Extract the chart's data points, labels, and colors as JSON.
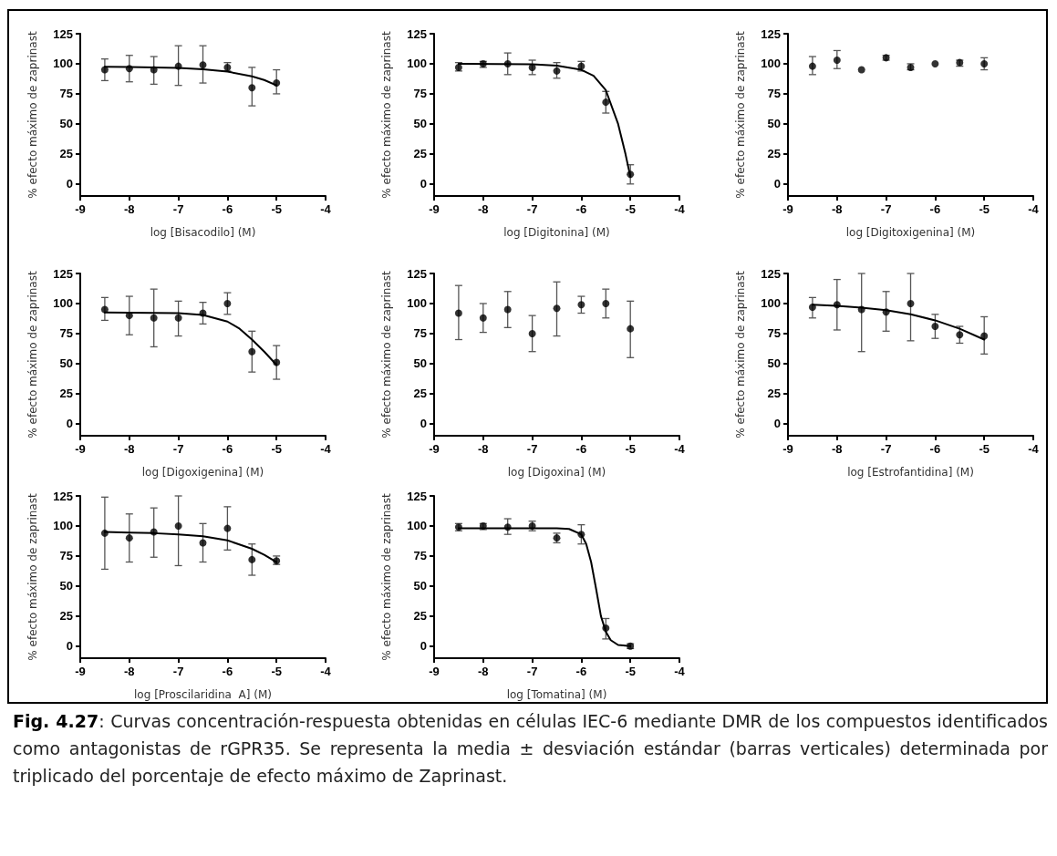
{
  "chart_data": [
    {
      "type": "scatter",
      "xlabel": "log [Bisacodilo] (M)",
      "ylabel": "% efecto máximo de zaprinast",
      "xlim": [
        -9,
        -4
      ],
      "xticks": [
        -9,
        -8,
        -7,
        -6,
        -5,
        -4
      ],
      "ylim": [
        -10,
        125
      ],
      "yticks": [
        0,
        25,
        50,
        75,
        100,
        125
      ],
      "marker": "circle",
      "x": [
        -8.5,
        -8,
        -7.5,
        -7,
        -6.5,
        -6,
        -5.5,
        -5
      ],
      "series": [
        {
          "color": "#000000",
          "values": [
            95,
            96,
            95,
            98,
            99,
            97,
            80,
            84
          ],
          "errors": [
            [
              86,
              104
            ],
            [
              85,
              107
            ],
            [
              83,
              106
            ],
            [
              82,
              115
            ],
            [
              84,
              115
            ],
            [
              94,
              101
            ],
            [
              65,
              97
            ],
            [
              75,
              95
            ]
          ]
        },
        {
          "type": "line",
          "color": "#000000",
          "marker": "none",
          "x": [
            -8.5,
            -8,
            -7.5,
            -7,
            -6.5,
            -6,
            -5.5,
            -5.25,
            -5
          ],
          "values": [
            97.5,
            97.3,
            97,
            96.5,
            95.5,
            93.5,
            89.5,
            86.5,
            82
          ]
        }
      ]
    },
    {
      "type": "scatter",
      "xlabel": "log [Digitonina] (M)",
      "ylabel": "% efecto máximo de zaprinast",
      "xlim": [
        -9,
        -4
      ],
      "xticks": [
        -9,
        -8,
        -7,
        -6,
        -5,
        -4
      ],
      "ylim": [
        -10,
        125
      ],
      "yticks": [
        0,
        25,
        50,
        75,
        100,
        125
      ],
      "marker": "circle",
      "x": [
        -8.5,
        -8,
        -7.5,
        -7,
        -6.5,
        -6,
        -5.5,
        -5
      ],
      "series": [
        {
          "color": "#000000",
          "values": [
            97,
            100,
            100,
            97,
            94,
            98,
            68,
            8
          ],
          "errors": [
            [
              94,
              101
            ],
            [
              97,
              102
            ],
            [
              91,
              109
            ],
            [
              91,
              103
            ],
            [
              88,
              101
            ],
            [
              94,
              102
            ],
            [
              59,
              77
            ],
            [
              0,
              16
            ]
          ]
        },
        {
          "type": "line",
          "color": "#000000",
          "marker": "none",
          "x": [
            -8.5,
            -7,
            -6.5,
            -6,
            -5.75,
            -5.5,
            -5.25,
            -5.1,
            -5
          ],
          "values": [
            100,
            99.5,
            98.5,
            95,
            90,
            78,
            50,
            25,
            6
          ]
        }
      ]
    },
    {
      "type": "scatter",
      "xlabel": "log [Digitoxigenina] (M)",
      "ylabel": "% efecto máximo de zaprinast",
      "xlim": [
        -9,
        -4
      ],
      "xticks": [
        -9,
        -8,
        -7,
        -6,
        -5,
        -4
      ],
      "ylim": [
        -10,
        125
      ],
      "yticks": [
        0,
        25,
        50,
        75,
        100,
        125
      ],
      "marker": "circle",
      "x": [
        -8.5,
        -8,
        -7.5,
        -7,
        -6.5,
        -6,
        -5.5,
        -5
      ],
      "series": [
        {
          "color": "#000000",
          "values": [
            98,
            103,
            95,
            105,
            97,
            100,
            101,
            100
          ],
          "errors": [
            [
              91,
              106
            ],
            [
              96,
              111
            ],
            null,
            [
              103,
              107
            ],
            [
              95,
              100
            ],
            null,
            [
              98,
              103
            ],
            [
              95,
              105
            ]
          ]
        }
      ]
    },
    {
      "type": "scatter",
      "xlabel": "log [Digoxigenina] (M)",
      "ylabel": "% efecto máximo de zaprinast",
      "xlim": [
        -9,
        -4
      ],
      "xticks": [
        -9,
        -8,
        -7,
        -6,
        -5,
        -4
      ],
      "ylim": [
        -10,
        125
      ],
      "yticks": [
        0,
        25,
        50,
        75,
        100,
        125
      ],
      "marker": "circle",
      "x": [
        -8.5,
        -8,
        -7.5,
        -7,
        -6.5,
        -6,
        -5.5,
        -5
      ],
      "series": [
        {
          "color": "#000000",
          "values": [
            95,
            90,
            88,
            88,
            92,
            100,
            60,
            51
          ],
          "errors": [
            [
              86,
              105
            ],
            [
              74,
              106
            ],
            [
              64,
              112
            ],
            [
              73,
              102
            ],
            [
              83,
              101
            ],
            [
              91,
              109
            ],
            [
              43,
              77
            ],
            [
              37,
              65
            ]
          ]
        },
        {
          "type": "line",
          "color": "#000000",
          "marker": "none",
          "x": [
            -8.5,
            -7,
            -6.5,
            -6,
            -5.75,
            -5.5,
            -5.25,
            -5
          ],
          "values": [
            92.5,
            92,
            90.5,
            85,
            79,
            70,
            60,
            49
          ]
        }
      ]
    },
    {
      "type": "scatter",
      "xlabel": "log [Digoxina] (M)",
      "ylabel": "% efecto máximo de zaprinast",
      "xlim": [
        -9,
        -4
      ],
      "xticks": [
        -9,
        -8,
        -7,
        -6,
        -5,
        -4
      ],
      "ylim": [
        -10,
        125
      ],
      "yticks": [
        0,
        25,
        50,
        75,
        100,
        125
      ],
      "marker": "circle",
      "x": [
        -8.5,
        -8,
        -7.5,
        -7,
        -6.5,
        -6,
        -5.5,
        -5
      ],
      "series": [
        {
          "color": "#000000",
          "values": [
            92,
            88,
            95,
            75,
            96,
            99,
            100,
            79
          ],
          "errors": [
            [
              70,
              115
            ],
            [
              76,
              100
            ],
            [
              80,
              110
            ],
            [
              60,
              90
            ],
            [
              73,
              118
            ],
            [
              92,
              106
            ],
            [
              88,
              112
            ],
            [
              55,
              102
            ]
          ]
        }
      ]
    },
    {
      "type": "scatter",
      "xlabel": "log [Estrofantidina] (M)",
      "ylabel": "% efecto máximo de zaprinast",
      "xlim": [
        -9,
        -4
      ],
      "xticks": [
        -9,
        -8,
        -7,
        -6,
        -5,
        -4
      ],
      "ylim": [
        -10,
        125
      ],
      "yticks": [
        0,
        25,
        50,
        75,
        100,
        125
      ],
      "marker": "circle",
      "x": [
        -8.5,
        -8,
        -7.5,
        -7,
        -6.5,
        -6,
        -5.5,
        -5
      ],
      "series": [
        {
          "color": "#000000",
          "values": [
            97,
            99,
            95,
            93,
            100,
            81,
            74,
            73
          ],
          "errors": [
            [
              88,
              105
            ],
            [
              78,
              120
            ],
            [
              60,
              125
            ],
            [
              77,
              110
            ],
            [
              69,
              125
            ],
            [
              71,
              91
            ],
            [
              67,
              81
            ],
            [
              58,
              89
            ]
          ]
        },
        {
          "type": "line",
          "color": "#000000",
          "marker": "none",
          "x": [
            -8.5,
            -8,
            -7.5,
            -7,
            -6.5,
            -6,
            -5.5,
            -5
          ],
          "values": [
            99,
            98,
            96.5,
            94.5,
            91,
            86,
            79,
            70
          ]
        }
      ]
    },
    {
      "type": "scatter",
      "xlabel": "log [Proscilaridina  A] (M)",
      "ylabel": "% efecto máximo de zaprinast",
      "xlim": [
        -9,
        -4
      ],
      "xticks": [
        -9,
        -8,
        -7,
        -6,
        -5,
        -4
      ],
      "ylim": [
        -10,
        125
      ],
      "yticks": [
        0,
        25,
        50,
        75,
        100,
        125
      ],
      "marker": "circle",
      "x": [
        -8.5,
        -8,
        -7.5,
        -7,
        -6.5,
        -6,
        -5.5,
        -5
      ],
      "series": [
        {
          "color": "#000000",
          "values": [
            94,
            90,
            95,
            100,
            86,
            98,
            72,
            71
          ],
          "errors": [
            [
              64,
              124
            ],
            [
              70,
              110
            ],
            [
              74,
              115
            ],
            [
              67,
              125
            ],
            [
              70,
              102
            ],
            [
              80,
              116
            ],
            [
              59,
              85
            ],
            [
              68,
              75
            ]
          ]
        },
        {
          "type": "line",
          "color": "#000000",
          "marker": "none",
          "x": [
            -8.5,
            -8,
            -7.5,
            -7,
            -6.5,
            -6,
            -5.5,
            -5.25,
            -5
          ],
          "values": [
            95,
            94.5,
            94,
            93,
            91.5,
            88,
            81,
            76,
            70
          ]
        }
      ]
    },
    {
      "type": "scatter",
      "xlabel": "log [Tomatina] (M)",
      "ylabel": "% efecto máximo de zaprinast",
      "xlim": [
        -9,
        -4
      ],
      "xticks": [
        -9,
        -8,
        -7,
        -6,
        -5,
        -4
      ],
      "ylim": [
        -10,
        125
      ],
      "yticks": [
        0,
        25,
        50,
        75,
        100,
        125
      ],
      "marker": "circle",
      "x": [
        -8.5,
        -8,
        -7.5,
        -7,
        -6.5,
        -6,
        -5.5,
        -5
      ],
      "annotations": [
        "Fig. 4.27: Curvas concentración-respuesta obtenidas en células IEC-6 mediante DMR de los compuestos identificados como antagonistas de rGPR35. Se representa la media ± desviación estándar (barras verticales) determinada por triplicado del porcentaje de efecto máximo de Zaprinast."
      ],
      "series": [
        {
          "color": "#000000",
          "values": [
            99,
            100,
            99,
            100,
            90,
            93,
            15,
            0
          ],
          "errors": [
            [
              96,
              102
            ],
            [
              97,
              102
            ],
            [
              93,
              106
            ],
            [
              96,
              104
            ],
            [
              86,
              94
            ],
            [
              85,
              101
            ],
            [
              6,
              23
            ],
            [
              -2,
              2
            ]
          ]
        },
        {
          "type": "line",
          "color": "#000000",
          "marker": "none",
          "x": [
            -8.5,
            -6.5,
            -6.25,
            -6,
            -5.9,
            -5.8,
            -5.7,
            -5.6,
            -5.5,
            -5.4,
            -5.25,
            -5
          ],
          "values": [
            98,
            98,
            97.5,
            93,
            85,
            70,
            48,
            25,
            12,
            5,
            1,
            0
          ]
        }
      ]
    }
  ]
}
